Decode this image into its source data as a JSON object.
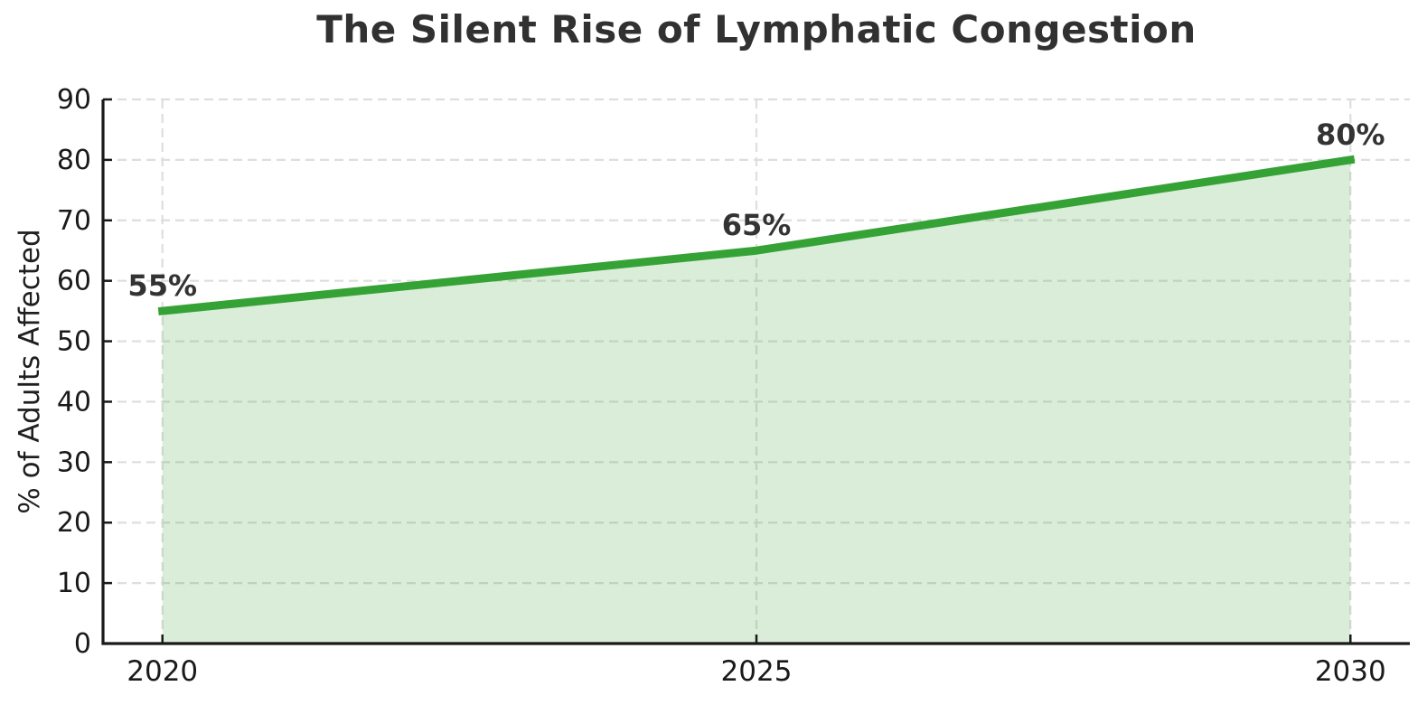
{
  "title": "The Silent Rise of Lymphatic Congestion",
  "chart_data": {
    "type": "area",
    "title": "The Silent Rise of Lymphatic Congestion",
    "xlabel": "",
    "ylabel": "% of Adults Affected",
    "x": [
      2020,
      2025,
      2030
    ],
    "values": [
      55,
      65,
      80
    ],
    "point_labels": [
      "55%",
      "65%",
      "80%"
    ],
    "xticks": [
      2020,
      2025,
      2030
    ],
    "xtick_labels": [
      "2020",
      "2025",
      "2030"
    ],
    "yticks": [
      0,
      10,
      20,
      30,
      40,
      50,
      60,
      70,
      80,
      90
    ],
    "ytick_labels": [
      "0",
      "10",
      "20",
      "30",
      "40",
      "50",
      "60",
      "70",
      "80",
      "90"
    ],
    "xlim": [
      2019.5,
      2030.5
    ],
    "ylim": [
      0,
      90
    ],
    "grid": "dashed",
    "legend_position": "none",
    "colors": {
      "line": "#35a235",
      "fill": "#35a235",
      "fill_opacity": 0.19,
      "grid": "#dedede",
      "axis": "#1a1a1a",
      "title_text": "#313131",
      "label_text": "#333333"
    }
  }
}
